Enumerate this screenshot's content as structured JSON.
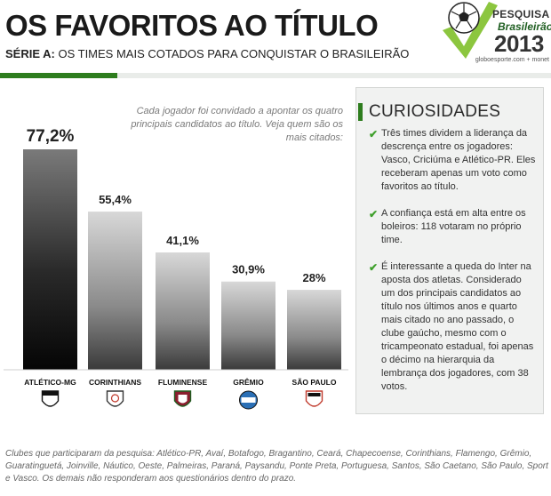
{
  "header": {
    "title": "OS FAVORITOS AO TÍTULO",
    "subtitle_bold": "SÉRIE A:",
    "subtitle_rest": " OS TIMES MAIS COTADOS PARA CONQUISTAR O BRASILEIRÃO"
  },
  "logo": {
    "line1": "PESQUISA",
    "line2": "Brasileirão",
    "year": "2013",
    "site": "globoesporte.com + monet",
    "check_color": "#8cc63f",
    "ball_icon": "soccer-ball-icon"
  },
  "intro": "Cada jogador foi convidado a apontar os quatro principais candidatos ao título. Veja quem são os mais citados:",
  "chart_data": {
    "type": "bar",
    "categories": [
      "ATLÉTICO-MG",
      "CORINTHIANS",
      "FLUMINENSE",
      "GRÊMIO",
      "SÃO PAULO"
    ],
    "values": [
      77.2,
      55.4,
      41.1,
      30.9,
      28
    ],
    "value_labels": [
      "77,2%",
      "55,4%",
      "41,1%",
      "30,9%",
      "28%"
    ],
    "badge_icons": [
      "atletico-mg-crest-icon",
      "corinthians-crest-icon",
      "fluminense-crest-icon",
      "gremio-crest-icon",
      "sao-paulo-crest-icon"
    ],
    "unit": "%",
    "ylim": [
      0,
      77.2
    ],
    "grid": false,
    "legend": "none"
  },
  "panel": {
    "title": "CURIOSIDADES",
    "tips": [
      "Três times dividem a liderança da descrença entre os jogadores: Vasco, Criciúma e Atlético-PR. Eles receberam apenas um voto como favoritos ao título.",
      "A confiança está em alta entre os boleiros: 118 votaram no próprio time.",
      "É interessante a queda do Inter na aposta dos atletas. Considerado um dos principais candidatos ao título nos últimos anos e quarto mais citado no ano passado, o clube gaúcho, mesmo com o tricampeonato estadual, foi apenas o décimo na hierarquia da lembrança dos jogadores, com 38 votos."
    ]
  },
  "footnote": "Clubes que participaram da pesquisa: Atlético-PR, Avaí, Botafogo, Bragantino, Ceará, Chapecoense, Corinthians, Flamengo, Grêmio, Guaratinguetá, Joinville, Náutico, Oeste, Palmeiras, Paraná, Paysandu, Ponte Preta, Portuguesa, Santos, São Caetano, São Paulo, Sport e Vasco. Os demais não responderam aos questionários dentro do prazo."
}
